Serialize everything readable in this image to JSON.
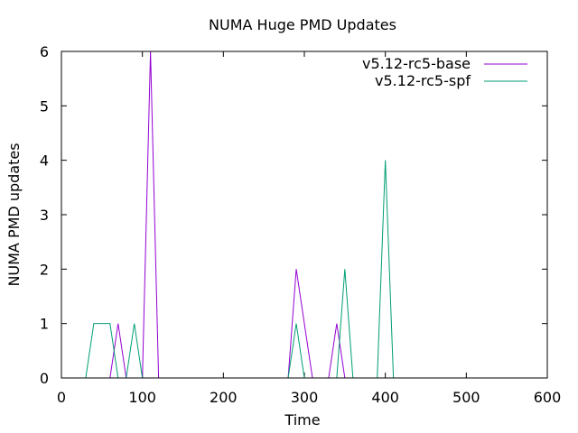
{
  "chart_data": {
    "type": "line",
    "title": "NUMA Huge PMD Updates",
    "xlabel": "Time",
    "ylabel": "NUMA PMD updates",
    "xlim": [
      0,
      600
    ],
    "ylim": [
      0,
      6
    ],
    "xticks": [
      "0",
      "100",
      "200",
      "300",
      "400",
      "500",
      "600"
    ],
    "yticks": [
      "0",
      "1",
      "2",
      "3",
      "4",
      "5",
      "6"
    ],
    "grid": false,
    "legend_position": "top-right",
    "series": [
      {
        "name": "v5.12-rc5-base",
        "color": "#9400d3",
        "x": [
          60,
          70,
          80,
          100,
          110,
          120,
          280,
          290,
          310,
          330,
          340,
          350
        ],
        "y": [
          0,
          1,
          0,
          0,
          6,
          0,
          0,
          2,
          0,
          0,
          1,
          0
        ]
      },
      {
        "name": "v5.12-rc5-spf",
        "color": "#009e73",
        "x": [
          30,
          40,
          60,
          70,
          80,
          90,
          100,
          280,
          290,
          300,
          340,
          350,
          360,
          390,
          400,
          410
        ],
        "y": [
          0,
          1,
          1,
          0,
          0,
          1,
          0,
          0,
          1,
          0,
          0,
          2,
          0,
          0,
          4,
          0
        ]
      }
    ]
  }
}
